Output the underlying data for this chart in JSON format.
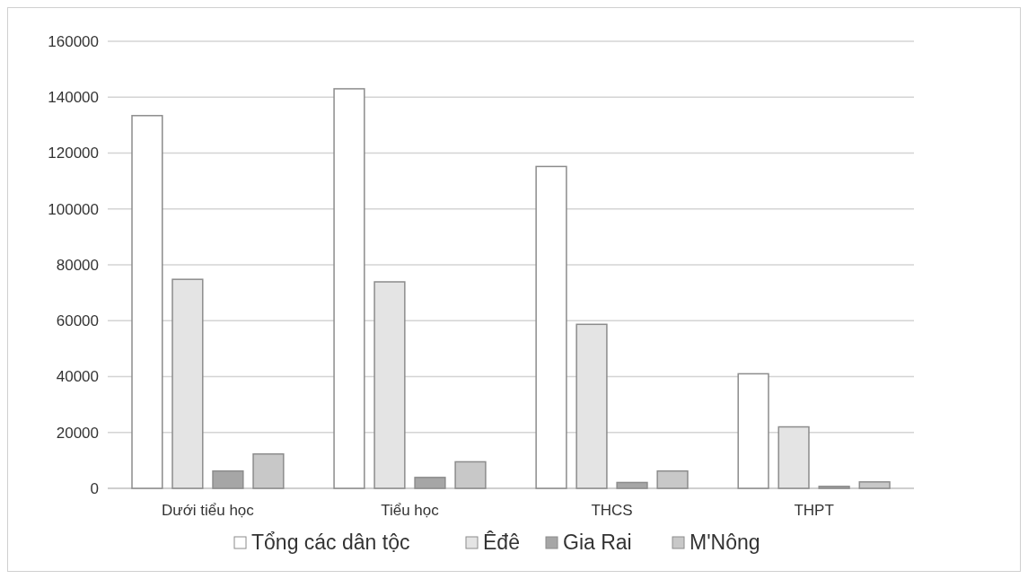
{
  "chart_data": {
    "type": "bar",
    "categories": [
      "Dưới tiểu học",
      "Tiểu học",
      "THCS",
      "THPT"
    ],
    "series": [
      {
        "name": "Tổng các dân tộc",
        "color": "#ffffff",
        "values": [
          133400,
          143000,
          115200,
          41000
        ]
      },
      {
        "name": "Êđê",
        "color": "#e4e4e4",
        "values": [
          74800,
          73900,
          58700,
          22000
        ]
      },
      {
        "name": "Gia Rai",
        "color": "#a6a6a6",
        "values": [
          6200,
          3900,
          2100,
          700
        ]
      },
      {
        "name": "M'Nông",
        "color": "#c8c8c8",
        "values": [
          12300,
          9500,
          6200,
          2300
        ]
      }
    ],
    "ylim": [
      0,
      160000
    ],
    "yticks": [
      0,
      20000,
      40000,
      60000,
      80000,
      100000,
      120000,
      140000,
      160000
    ],
    "grid": "y",
    "legend": "bottom"
  }
}
